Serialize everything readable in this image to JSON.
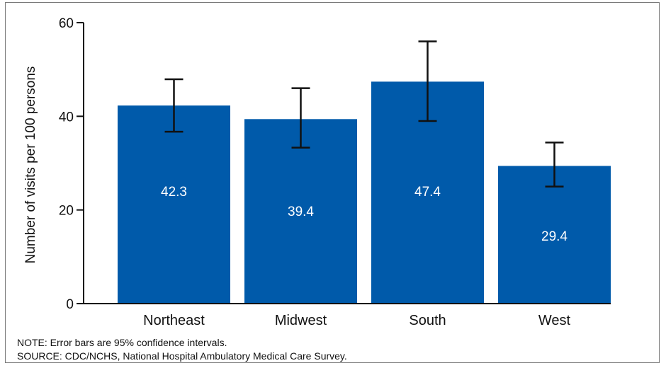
{
  "chart_data": {
    "type": "bar",
    "categories": [
      "Northeast",
      "Midwest",
      "South",
      "West"
    ],
    "values": [
      42.3,
      39.4,
      47.4,
      29.4
    ],
    "value_labels": [
      "42.3",
      "39.4",
      "47.4",
      "29.4"
    ],
    "error_bars": [
      {
        "low": 36.7,
        "high": 47.9
      },
      {
        "low": 33.3,
        "high": 46.0
      },
      {
        "low": 39.0,
        "high": 56.0
      },
      {
        "low": 25.0,
        "high": 34.4
      }
    ],
    "title": "",
    "xlabel": "",
    "ylabel": "Number of visits per 100 persons",
    "ylim": [
      0,
      60
    ],
    "yticks": [
      0,
      20,
      40,
      60
    ],
    "grid": false,
    "bar_color": "#005aaa"
  },
  "footer": {
    "note": "NOTE:  Error bars are 95% confidence intervals.",
    "source": "SOURCE: CDC/NCHS, National Hospital Ambulatory Medical Care Survey."
  }
}
